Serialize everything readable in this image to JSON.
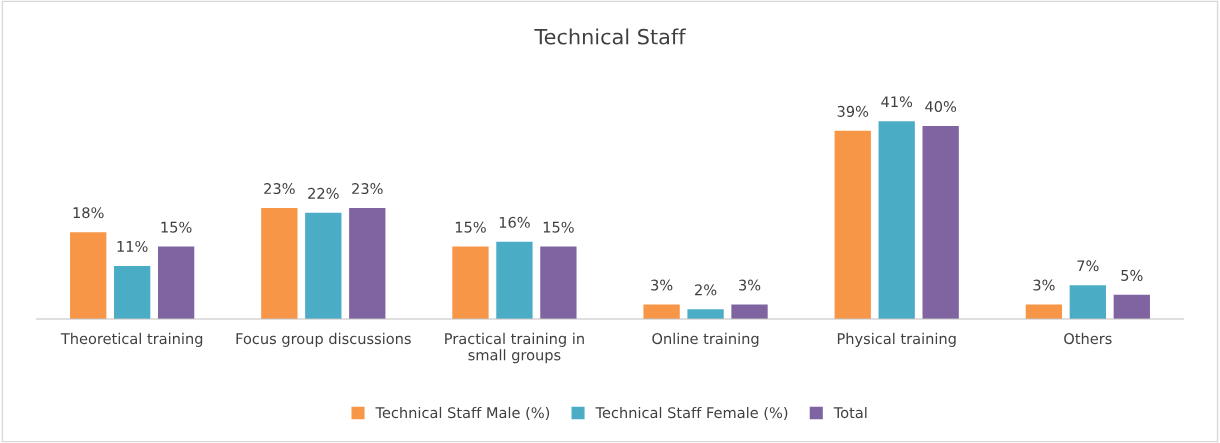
{
  "chart_data": {
    "type": "bar",
    "title": "Technical Staff",
    "categories": [
      "Theoretical training",
      "Focus group discussions",
      "Practical training in small groups",
      "Online training",
      "Physical training",
      "Others"
    ],
    "series": [
      {
        "name": "Technical Staff Male (%)",
        "color": "#f79646",
        "values": [
          18,
          23,
          15,
          3,
          39,
          3
        ],
        "value_labels": [
          "18%",
          "23%",
          "15%",
          "3%",
          "39%",
          "3%"
        ]
      },
      {
        "name": "Technical Staff Female (%)",
        "color": "#4bacc6",
        "values": [
          11,
          22,
          16,
          2,
          41,
          7
        ],
        "value_labels": [
          "11%",
          "22%",
          "16%",
          "2%",
          "41%",
          "7%"
        ]
      },
      {
        "name": "Total",
        "color": "#8064a2",
        "values": [
          15,
          23,
          15,
          3,
          40,
          5
        ],
        "value_labels": [
          "15%",
          "23%",
          "15%",
          "3%",
          "40%",
          "5%"
        ]
      }
    ],
    "legend": "bottom"
  }
}
